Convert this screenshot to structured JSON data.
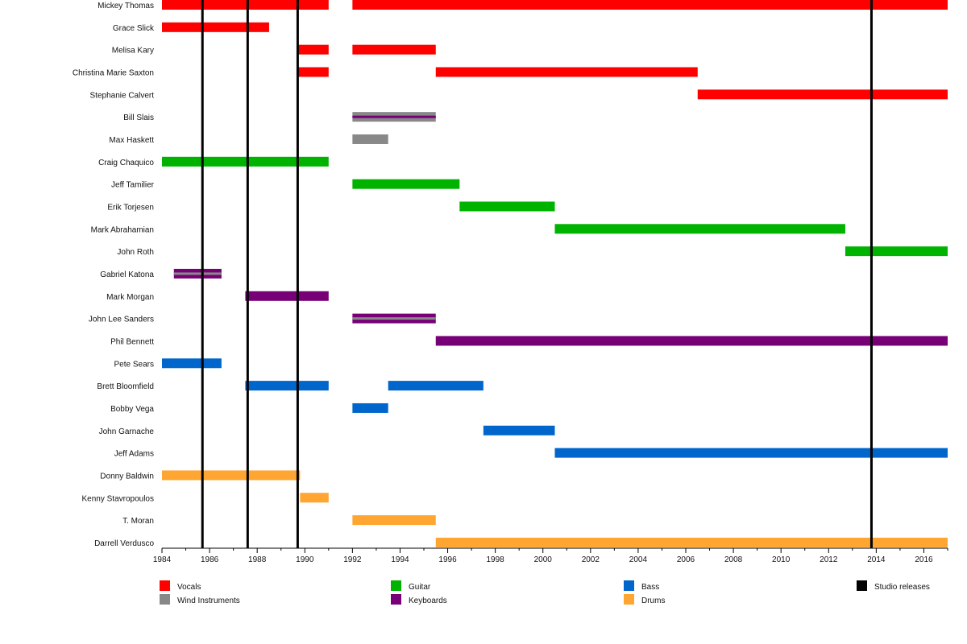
{
  "chart_data": {
    "type": "bar",
    "title": "",
    "xlabel": "",
    "ylabel": "",
    "xlim": [
      1984,
      2017
    ],
    "x_ticks": [
      1984,
      1986,
      1988,
      1990,
      1992,
      1994,
      1996,
      1998,
      2000,
      2002,
      2004,
      2006,
      2008,
      2010,
      2012,
      2014,
      2016
    ],
    "grid": false,
    "legend_position": "bottom",
    "categories": [
      {
        "key": "vocals",
        "label": "Vocals",
        "color": "#ff0000"
      },
      {
        "key": "wind",
        "label": "Wind Instruments",
        "color": "#888888"
      },
      {
        "key": "guitar",
        "label": "Guitar",
        "color": "#00b300"
      },
      {
        "key": "keyboards",
        "label": "Keyboards",
        "color": "#770077"
      },
      {
        "key": "bass",
        "label": "Bass",
        "color": "#0066cc"
      },
      {
        "key": "drums",
        "label": "Drums",
        "color": "#ffa531"
      },
      {
        "key": "studio",
        "label": "Studio releases",
        "color": "#000000"
      }
    ],
    "studio_releases": [
      1985.7,
      1987.6,
      1989.7,
      2013.8
    ],
    "members": [
      {
        "name": "Mickey Thomas",
        "periods": [
          {
            "role": "vocals",
            "start": 1984,
            "end": 1991
          },
          {
            "role": "vocals",
            "start": 1992,
            "end": 2017
          }
        ]
      },
      {
        "name": "Grace Slick",
        "periods": [
          {
            "role": "vocals",
            "start": 1984,
            "end": 1988.5
          }
        ]
      },
      {
        "name": "Melisa Kary",
        "periods": [
          {
            "role": "vocals",
            "start": 1989.7,
            "end": 1991
          },
          {
            "role": "vocals",
            "start": 1992,
            "end": 1995.5
          }
        ]
      },
      {
        "name": "Christina Marie Saxton",
        "periods": [
          {
            "role": "vocals",
            "start": 1989.7,
            "end": 1991
          },
          {
            "role": "vocals",
            "start": 1995.5,
            "end": 2006.5
          }
        ]
      },
      {
        "name": "Stephanie Calvert",
        "periods": [
          {
            "role": "vocals",
            "start": 2006.5,
            "end": 2017
          }
        ]
      },
      {
        "name": "Bill Slais",
        "periods": [
          {
            "role": "wind",
            "start": 1992,
            "end": 1995.5,
            "secondary": "keyboards"
          }
        ]
      },
      {
        "name": "Max Haskett",
        "periods": [
          {
            "role": "wind",
            "start": 1992,
            "end": 1993.5
          }
        ]
      },
      {
        "name": "Craig Chaquico",
        "periods": [
          {
            "role": "guitar",
            "start": 1984,
            "end": 1991
          }
        ]
      },
      {
        "name": "Jeff Tamilier",
        "periods": [
          {
            "role": "guitar",
            "start": 1992,
            "end": 1996.5
          }
        ]
      },
      {
        "name": "Erik Torjesen",
        "periods": [
          {
            "role": "guitar",
            "start": 1996.5,
            "end": 2000.5
          }
        ]
      },
      {
        "name": "Mark Abrahamian",
        "periods": [
          {
            "role": "guitar",
            "start": 2000.5,
            "end": 2012.7
          }
        ]
      },
      {
        "name": "John Roth",
        "periods": [
          {
            "role": "guitar",
            "start": 2012.7,
            "end": 2017
          }
        ]
      },
      {
        "name": "Gabriel Katona",
        "periods": [
          {
            "role": "keyboards",
            "start": 1984.5,
            "end": 1986.5,
            "secondary": "wind"
          }
        ]
      },
      {
        "name": "Mark Morgan",
        "periods": [
          {
            "role": "keyboards",
            "start": 1987.5,
            "end": 1991
          }
        ]
      },
      {
        "name": "John Lee Sanders",
        "periods": [
          {
            "role": "keyboards",
            "start": 1992,
            "end": 1995.5,
            "secondary": "wind"
          }
        ]
      },
      {
        "name": "Phil Bennett",
        "periods": [
          {
            "role": "keyboards",
            "start": 1995.5,
            "end": 2017
          }
        ]
      },
      {
        "name": "Pete Sears",
        "periods": [
          {
            "role": "bass",
            "start": 1984,
            "end": 1986.5
          }
        ]
      },
      {
        "name": "Brett Bloomfield",
        "periods": [
          {
            "role": "bass",
            "start": 1987.5,
            "end": 1991
          },
          {
            "role": "bass",
            "start": 1993.5,
            "end": 1997.5
          }
        ]
      },
      {
        "name": "Bobby Vega",
        "periods": [
          {
            "role": "bass",
            "start": 1992,
            "end": 1993.5
          }
        ]
      },
      {
        "name": "John Garnache",
        "periods": [
          {
            "role": "bass",
            "start": 1997.5,
            "end": 2000.5
          }
        ]
      },
      {
        "name": "Jeff Adams",
        "periods": [
          {
            "role": "bass",
            "start": 2000.5,
            "end": 2017
          }
        ]
      },
      {
        "name": "Donny Baldwin",
        "periods": [
          {
            "role": "drums",
            "start": 1984,
            "end": 1989.8
          }
        ]
      },
      {
        "name": "Kenny Stavropoulos",
        "periods": [
          {
            "role": "drums",
            "start": 1989.8,
            "end": 1991
          }
        ]
      },
      {
        "name": "T. Moran",
        "periods": [
          {
            "role": "drums",
            "start": 1992,
            "end": 1995.5
          }
        ]
      },
      {
        "name": "Darrell Verdusco",
        "periods": [
          {
            "role": "drums",
            "start": 1995.5,
            "end": 2017
          }
        ]
      }
    ]
  }
}
